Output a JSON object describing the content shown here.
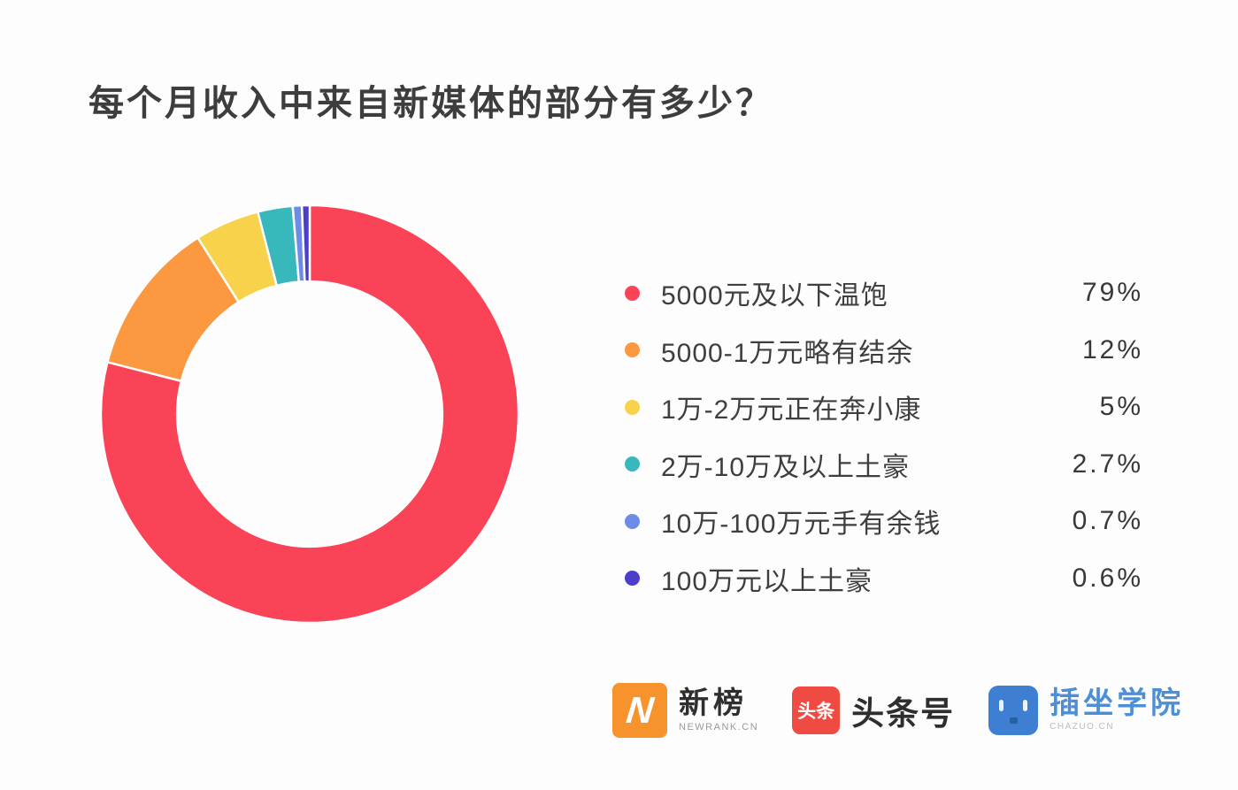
{
  "page": {
    "background": "#fdfdfd"
  },
  "title": "每个月收入中来自新媒体的部分有多少？",
  "chart_data": {
    "type": "pie",
    "subtype": "donut",
    "title": "每个月收入中来自新媒体的部分有多少？",
    "start_angle_deg": 0,
    "direction": "clockwise",
    "inner_radius_ratio": 0.635,
    "legend_position": "right",
    "separator_color": "#ffffff",
    "items": [
      {
        "label": "5000元及以下温饱",
        "value": 79,
        "display": "79%",
        "color": "#fa4356"
      },
      {
        "label": "5000-1万元略有结余",
        "value": 12,
        "display": "12%",
        "color": "#fb9840"
      },
      {
        "label": "1万-2万元正在奔小康",
        "value": 5,
        "display": "5%",
        "color": "#f8d24a"
      },
      {
        "label": "2万-10万及以上土豪",
        "value": 2.7,
        "display": "2.7%",
        "color": "#38b8bd"
      },
      {
        "label": "10万-100万元手有余钱",
        "value": 0.7,
        "display": "0.7%",
        "color": "#6e8be8"
      },
      {
        "label": "100万元以上土豪",
        "value": 0.6,
        "display": "0.6%",
        "color": "#4b3fc9"
      }
    ]
  },
  "footer": {
    "logos": [
      {
        "name": "newrank",
        "icon_glyph": "N",
        "icon_color": "#f6932c",
        "title": "新榜",
        "subtitle": "NEWRANK.CN"
      },
      {
        "name": "toutiao",
        "badge_text": "头条",
        "icon_color": "#f04b43",
        "title": "头条号"
      },
      {
        "name": "chazuo",
        "icon_color": "#3f7fd2",
        "title": "插坐学院",
        "subtitle": "CHAZUO.CN"
      }
    ]
  }
}
